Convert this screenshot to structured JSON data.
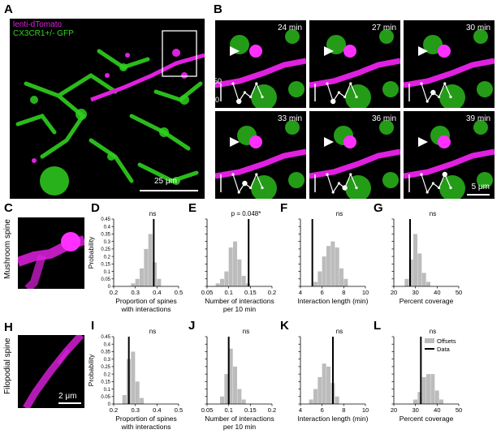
{
  "panels": {
    "A": {
      "letter": "A",
      "legend_red": "lenti-dTomato",
      "legend_green": "CX3CR1+/- GFP",
      "scale": "25 μm"
    },
    "B": {
      "letter": "B",
      "frames": [
        "24 min",
        "27 min",
        "30 min",
        "33 min",
        "36 min",
        "39 min"
      ],
      "inset_ytick_top": "50",
      "inset_ytick_bottom": "0",
      "inset_values": [
        [
          4,
          0,
          2,
          1,
          4,
          1
        ],
        [
          4,
          0,
          2,
          1,
          4,
          1
        ],
        [
          4,
          0,
          2,
          1,
          4,
          1
        ],
        [
          4,
          0,
          2,
          1,
          4,
          1
        ],
        [
          4,
          0,
          2,
          1,
          4,
          1
        ],
        [
          4,
          0,
          2,
          1,
          4,
          1
        ]
      ],
      "inset_highlight_index": [
        1,
        1,
        2,
        2,
        3,
        4
      ],
      "scale": "5 μm"
    },
    "C": {
      "letter": "C",
      "side_label": "Mushroom spine"
    },
    "H": {
      "letter": "H",
      "side_label": "Filopodial spine",
      "scale": "2 μm"
    }
  },
  "colors": {
    "magenta": "#e020e0",
    "green": "#30d020",
    "bar_gray": "#bcbcbc",
    "data_line": "#000000"
  },
  "chart_data": [
    {
      "id": "D",
      "type": "bar",
      "ylabel": "Probability",
      "title": "ns",
      "xlabel_lines": [
        "Proportion of spines",
        "with interactions"
      ],
      "xlim": [
        0.2,
        0.5
      ],
      "xticks": [
        "0.2",
        "0.3",
        "0.4",
        "0.5"
      ],
      "xtick_values": [
        0.2,
        0.3,
        0.4,
        0.5
      ],
      "bin_width": 0.02,
      "bins": [
        0.28,
        0.3,
        0.32,
        0.34,
        0.36,
        0.38,
        0.4
      ],
      "values": [
        0.02,
        0.05,
        0.12,
        0.25,
        0.35,
        0.16,
        0.05
      ],
      "data_line": 0.385
    },
    {
      "id": "E",
      "type": "bar",
      "ylabel": "",
      "title": "p = 0.048*",
      "xlabel_lines": [
        "Number of interactions",
        "per 10 min"
      ],
      "xlim": [
        0.05,
        0.2
      ],
      "xticks": [
        "0.05",
        "0.1",
        "0.15",
        "0.2"
      ],
      "xtick_values": [
        0.05,
        0.1,
        0.15,
        0.2
      ],
      "bin_width": 0.01,
      "bins": [
        0.07,
        0.08,
        0.09,
        0.1,
        0.11,
        0.12,
        0.13,
        0.14
      ],
      "values": [
        0.02,
        0.05,
        0.1,
        0.26,
        0.3,
        0.18,
        0.07,
        0.02
      ],
      "data_line": 0.146
    },
    {
      "id": "F",
      "type": "bar",
      "ylabel": "",
      "title": "ns",
      "xlabel_lines": [
        "Interaction length (min)"
      ],
      "xlim": [
        4,
        10
      ],
      "xticks": [
        "4",
        "6",
        "8",
        "10"
      ],
      "xtick_values": [
        4,
        6,
        8,
        10
      ],
      "bin_width": 0.4,
      "bins": [
        5.2,
        5.6,
        6.0,
        6.4,
        6.8,
        7.2,
        7.6,
        8.0
      ],
      "values": [
        0.03,
        0.1,
        0.2,
        0.27,
        0.3,
        0.26,
        0.12,
        0.05
      ],
      "data_line": 5.1
    },
    {
      "id": "G",
      "type": "bar",
      "ylabel": "",
      "title": "ns",
      "xlabel_lines": [
        "Percent coverage"
      ],
      "xlim": [
        20,
        50
      ],
      "xticks": [
        "20",
        "30",
        "40",
        "50"
      ],
      "xtick_values": [
        20,
        30,
        40,
        50
      ],
      "bin_width": 2,
      "bins": [
        25,
        27,
        29,
        31,
        33,
        35
      ],
      "values": [
        0.05,
        0.18,
        0.35,
        0.22,
        0.09,
        0.03
      ],
      "data_line": 27.5
    },
    {
      "id": "I",
      "type": "bar",
      "ylabel": "Probability",
      "title": "ns",
      "xlabel_lines": [
        "Proportion of spines",
        "with interactions"
      ],
      "xlim": [
        0.2,
        0.5
      ],
      "xticks": [
        "0.2",
        "0.3",
        "0.4",
        "0.5"
      ],
      "xtick_values": [
        0.2,
        0.3,
        0.4,
        0.5
      ],
      "bin_width": 0.02,
      "bins": [
        0.24,
        0.26,
        0.28,
        0.3,
        0.32
      ],
      "values": [
        0.06,
        0.3,
        0.35,
        0.15,
        0.04
      ],
      "data_line": 0.27
    },
    {
      "id": "J",
      "type": "bar",
      "ylabel": "",
      "title": "ns",
      "xlabel_lines": [
        "Number of interactions",
        "per 10 min"
      ],
      "xlim": [
        0.05,
        0.2
      ],
      "xticks": [
        "0.05",
        "0.1",
        "0.15",
        "0.2"
      ],
      "xtick_values": [
        0.05,
        0.1,
        0.15,
        0.2
      ],
      "bin_width": 0.01,
      "bins": [
        0.08,
        0.09,
        0.1,
        0.11,
        0.12,
        0.13
      ],
      "values": [
        0.05,
        0.2,
        0.37,
        0.25,
        0.1,
        0.03
      ],
      "data_line": 0.1
    },
    {
      "id": "K",
      "type": "bar",
      "ylabel": "",
      "title": "ns",
      "xlabel_lines": [
        "Interaction length (min)"
      ],
      "xlim": [
        4,
        10
      ],
      "xticks": [
        "4",
        "6",
        "8",
        "10"
      ],
      "xtick_values": [
        4,
        6,
        8,
        10
      ],
      "bin_width": 0.4,
      "bins": [
        4.8,
        5.2,
        5.6,
        6.0,
        6.4,
        6.8,
        7.2
      ],
      "values": [
        0.03,
        0.1,
        0.18,
        0.27,
        0.25,
        0.14,
        0.05
      ],
      "data_line": 7.0
    },
    {
      "id": "L",
      "type": "bar",
      "ylabel": "",
      "title": "ns",
      "xlabel_lines": [
        "Percent coverage"
      ],
      "xlim": [
        20,
        50
      ],
      "xticks": [
        "20",
        "30",
        "40",
        "50"
      ],
      "xtick_values": [
        20,
        30,
        40,
        50
      ],
      "bin_width": 2,
      "bins": [
        29,
        31,
        33,
        35,
        37,
        39,
        41
      ],
      "values": [
        0.03,
        0.08,
        0.18,
        0.2,
        0.2,
        0.09,
        0.03
      ],
      "data_line": 32.5,
      "legend": [
        "Offsets",
        "Data"
      ]
    }
  ],
  "chart_common": {
    "ylim": [
      0,
      0.45
    ],
    "yticks": [
      "0",
      "0.05",
      "0.1",
      "0.15",
      "0.2",
      "0.25",
      "0.3",
      "0.35",
      "0.4",
      "0.45"
    ],
    "ytick_values": [
      0,
      0.05,
      0.1,
      0.15,
      0.2,
      0.25,
      0.3,
      0.35,
      0.4,
      0.45
    ]
  }
}
